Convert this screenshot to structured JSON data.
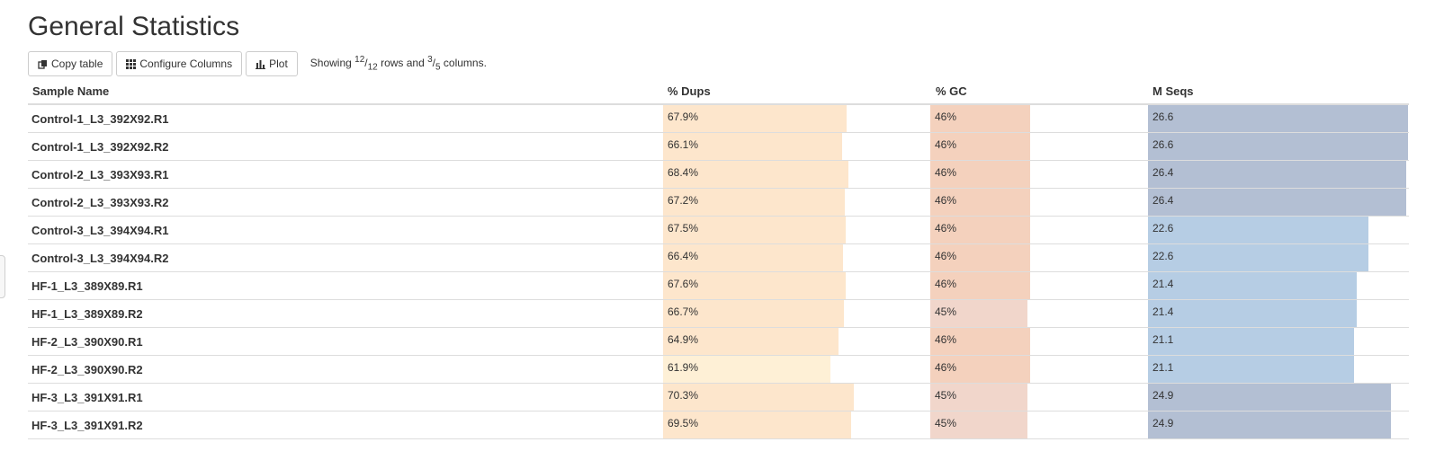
{
  "page": {
    "title": "General Statistics"
  },
  "toolbar": {
    "copy_label": "Copy table",
    "configure_label": "Configure Columns",
    "plot_label": "Plot",
    "status_prefix": "Showing ",
    "rows_shown": "12",
    "rows_total": "12",
    "status_mid": " rows and ",
    "cols_shown": "3",
    "cols_total": "5",
    "status_suffix": " columns."
  },
  "table": {
    "headers": {
      "sample": "Sample Name",
      "dups": "% Dups",
      "gc": "% GC",
      "mseqs": "M Seqs"
    },
    "rows": [
      {
        "name": "Control-1_L3_392X92.R1",
        "dups": "67.9%",
        "gc": "46%",
        "mseqs": "26.6"
      },
      {
        "name": "Control-1_L3_392X92.R2",
        "dups": "66.1%",
        "gc": "46%",
        "mseqs": "26.6"
      },
      {
        "name": "Control-2_L3_393X93.R1",
        "dups": "68.4%",
        "gc": "46%",
        "mseqs": "26.4"
      },
      {
        "name": "Control-2_L3_393X93.R2",
        "dups": "67.2%",
        "gc": "46%",
        "mseqs": "26.4"
      },
      {
        "name": "Control-3_L3_394X94.R1",
        "dups": "67.5%",
        "gc": "46%",
        "mseqs": "22.6"
      },
      {
        "name": "Control-3_L3_394X94.R2",
        "dups": "66.4%",
        "gc": "46%",
        "mseqs": "22.6"
      },
      {
        "name": "HF-1_L3_389X89.R1",
        "dups": "67.6%",
        "gc": "46%",
        "mseqs": "21.4"
      },
      {
        "name": "HF-1_L3_389X89.R2",
        "dups": "66.7%",
        "gc": "45%",
        "mseqs": "21.4"
      },
      {
        "name": "HF-2_L3_390X90.R1",
        "dups": "64.9%",
        "gc": "46%",
        "mseqs": "21.1"
      },
      {
        "name": "HF-2_L3_390X90.R2",
        "dups": "61.9%",
        "gc": "46%",
        "mseqs": "21.1"
      },
      {
        "name": "HF-3_L3_391X91.R1",
        "dups": "70.3%",
        "gc": "45%",
        "mseqs": "24.9"
      },
      {
        "name": "HF-3_L3_391X91.R2",
        "dups": "69.5%",
        "gc": "45%",
        "mseqs": "24.9"
      }
    ]
  },
  "colors": {
    "dups_bar": "#fde6cc",
    "dups_bar_light": "#fef0d6",
    "gc_bar": "#f4d1bd",
    "gc_bar_light": "#f1d6cb",
    "mseqs_bar_high": "#b3bfd3",
    "mseqs_bar_low": "#b6cde4"
  },
  "icons": {
    "copy": "copy-icon",
    "configure": "grid-icon",
    "plot": "bar-chart-icon"
  }
}
